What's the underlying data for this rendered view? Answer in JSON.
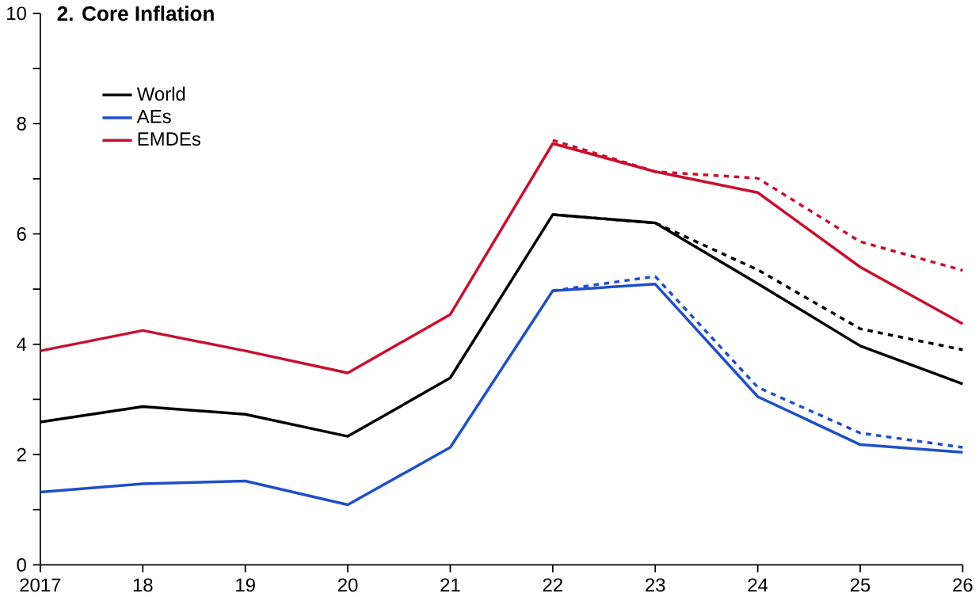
{
  "chart_data": {
    "type": "line",
    "title": "2. Core Inflation",
    "categories": [
      "2017",
      "18",
      "19",
      "20",
      "21",
      "22",
      "23",
      "24",
      "25",
      "26"
    ],
    "ylim": [
      0,
      10
    ],
    "yticks": [
      0,
      {
        "value": 1,
        "label": null
      },
      2,
      {
        "value": 3,
        "label": null
      },
      4,
      {
        "value": 5,
        "label": null
      },
      6,
      {
        "value": 7,
        "label": null
      },
      8,
      {
        "value": 9,
        "label": null
      },
      10
    ],
    "legend": "top left",
    "grid": false,
    "marker": "none",
    "series": [
      {
        "name": "World",
        "color": "#000000",
        "line_style": "solid",
        "values": [
          2.59,
          2.87,
          2.73,
          2.33,
          3.39,
          6.35,
          6.2,
          5.1,
          3.97,
          3.28
        ]
      },
      {
        "name": "AEs",
        "color": "#1f4fc8",
        "line_style": "solid",
        "values": [
          1.32,
          1.47,
          1.52,
          1.09,
          2.13,
          4.97,
          5.09,
          3.05,
          2.18,
          2.04
        ]
      },
      {
        "name": "EMDEs",
        "color": "#c8102e",
        "line_style": "solid",
        "values": [
          3.88,
          4.25,
          3.88,
          3.48,
          4.54,
          7.64,
          7.13,
          6.75,
          5.4,
          4.37
        ]
      },
      {
        "color": "#000000",
        "line_style": "dashed",
        "values": [
          null,
          null,
          null,
          null,
          null,
          6.35,
          6.2,
          5.35,
          4.28,
          3.9
        ]
      },
      {
        "color": "#1f4fc8",
        "line_style": "dashed",
        "values": [
          null,
          null,
          null,
          null,
          null,
          4.97,
          5.23,
          3.22,
          2.39,
          2.13
        ]
      },
      {
        "color": "#c8102e",
        "line_style": "dashed",
        "values": [
          null,
          null,
          null,
          null,
          null,
          7.7,
          7.13,
          7.01,
          5.86,
          5.34
        ]
      }
    ]
  }
}
